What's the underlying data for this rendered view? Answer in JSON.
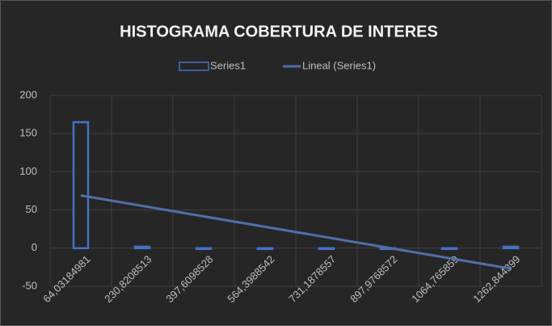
{
  "chart_data": {
    "type": "bar",
    "title": "HISTOGRAMA COBERTURA DE INTERES",
    "categories": [
      "64,03184981",
      "230,8208513",
      "397,6098528",
      "564,3988542",
      "731,1878557",
      "897,9768572",
      "1064,765859",
      "1262,844399"
    ],
    "series": [
      {
        "name": "Series1",
        "color": "#4472c4",
        "values": [
          165,
          2,
          0,
          0,
          0,
          0,
          0,
          2
        ]
      }
    ],
    "trendline": {
      "name": "Lineal (Series1)",
      "type": "linear",
      "color": "#4f6fa8"
    },
    "ylim": [
      -50,
      200
    ],
    "yticks": [
      -50,
      0,
      50,
      100,
      150,
      200
    ],
    "grid": true,
    "legend": "top"
  }
}
